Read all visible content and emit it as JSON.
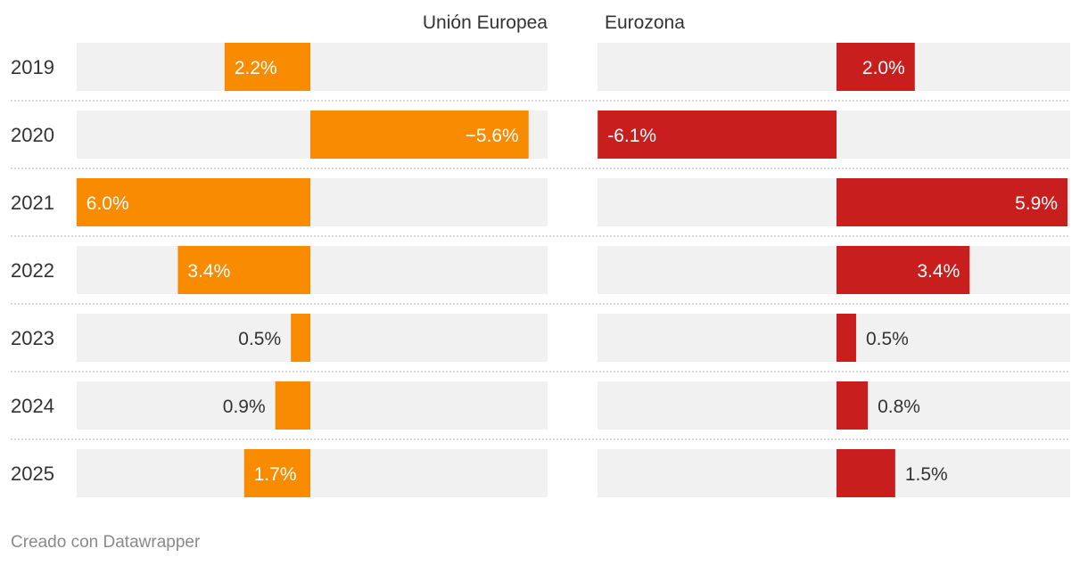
{
  "chart_data": {
    "type": "bar",
    "categories": [
      "2019",
      "2020",
      "2021",
      "2022",
      "2023",
      "2024",
      "2025"
    ],
    "series": [
      {
        "name": "Unión Europea",
        "values": [
          2.2,
          5.6,
          6.0,
          3.4,
          0.5,
          0.9,
          1.7
        ],
        "labels": [
          "2.2%",
          "−5.6%",
          "6.0%",
          "3.4%",
          "0.5%",
          "0.9%",
          "1.7%"
        ],
        "direction": "leftward from zero axis (except 2020 drawn rightward)",
        "color": "#f98b00"
      },
      {
        "name": "Eurozona",
        "values": [
          2.0,
          -6.1,
          5.9,
          3.4,
          0.5,
          0.8,
          1.5
        ],
        "labels": [
          "2.0%",
          "-6.1%",
          "5.9%",
          "3.4%",
          "0.5%",
          "0.8%",
          "1.5%"
        ],
        "direction": "rightward for positive values, leftward for negative",
        "color": "#c81e1e"
      }
    ],
    "background_bar_color": "#f1f1f1",
    "separator": "dotted",
    "legend": "column headers above each panel"
  },
  "footer": {
    "credit": "Creado con Datawrapper"
  }
}
